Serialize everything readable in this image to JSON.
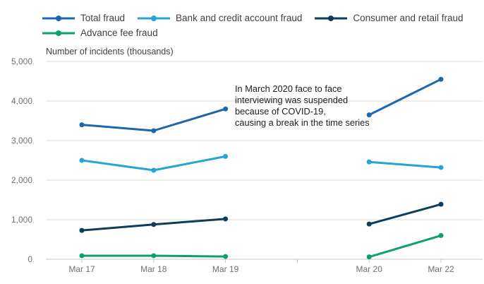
{
  "annotation": "In March 2020 face to face\ninterviewing was suspended\nbecause of COVID-19,\ncausing a break in the time series",
  "colors": {
    "gridline": "#d9d9d9",
    "axis_line": "#c6c6c6",
    "tick_label": "#707070",
    "legend_text": "#414042"
  },
  "chart_data": {
    "type": "line",
    "title": "",
    "ylabel": "Number of incidents (thousands)",
    "xlabel": "",
    "categories": [
      "Mar 17",
      "Mar 18",
      "Mar 19",
      "Mar 20",
      "Mar 22"
    ],
    "category_slots": [
      0,
      1,
      2,
      4,
      5
    ],
    "x_axis_tick_labels": [
      "Mar 17",
      "Mar 18",
      "Mar 19",
      "",
      "Mar 20",
      "Mar 22"
    ],
    "series": [
      {
        "name": "Total fraud",
        "color": "#1b66ae",
        "values": [
          3400,
          3250,
          3800,
          3650,
          4550
        ]
      },
      {
        "name": "Bank and credit account fraud",
        "color": "#27a3d4",
        "values": [
          2500,
          2250,
          2600,
          2460,
          2320
        ]
      },
      {
        "name": "Consumer and retail fraud",
        "color": "#0d3d5c",
        "values": [
          730,
          880,
          1020,
          890,
          1390
        ]
      },
      {
        "name": "Advance fee fraud",
        "color": "#0f9d74",
        "values": [
          90,
          90,
          70,
          60,
          600
        ]
      }
    ],
    "break_after_index": 2,
    "break_note": "break in time series between Mar 19 and Mar 20",
    "ylim": [
      0,
      5000
    ],
    "ytick_labels": [
      "0",
      "1,000",
      "2,000",
      "3,000",
      "4,000",
      "5,000"
    ],
    "grid": true,
    "legend_position": "top-left"
  }
}
